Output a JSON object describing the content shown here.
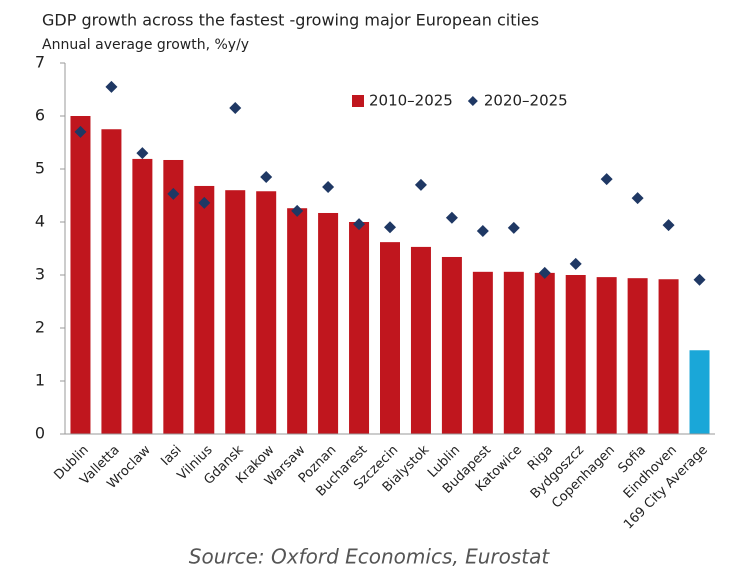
{
  "chart_data": {
    "type": "bar_dot",
    "title": "GDP growth across the fastest -growing major European cities",
    "subtitle": "Annual average growth, %y/y",
    "source": "Source: Oxford Economics, Eurostat",
    "categories": [
      "Dublin",
      "Valletta",
      "Wroclaw",
      "Iasi",
      "Vilnius",
      "Gdansk",
      "Krakow",
      "Warsaw",
      "Poznan",
      "Bucharest",
      "Szczecin",
      "Bialystok",
      "Lublin",
      "Budapest",
      "Katowice",
      "Riga",
      "Bydgoszcz",
      "Copenhagen",
      "Sofia",
      "Eindhoven",
      "169 City Average"
    ],
    "series": [
      {
        "name": "2010–2025",
        "kind": "bar",
        "color": "#c0161e",
        "colors": [
          "#c0161e",
          "#c0161e",
          "#c0161e",
          "#c0161e",
          "#c0161e",
          "#c0161e",
          "#c0161e",
          "#c0161e",
          "#c0161e",
          "#c0161e",
          "#c0161e",
          "#c0161e",
          "#c0161e",
          "#c0161e",
          "#c0161e",
          "#c0161e",
          "#c0161e",
          "#c0161e",
          "#c0161e",
          "#c0161e",
          "#1aa7d8"
        ],
        "values": [
          6.0,
          5.75,
          5.19,
          5.17,
          4.68,
          4.6,
          4.58,
          4.26,
          4.17,
          4.0,
          3.62,
          3.53,
          3.34,
          3.06,
          3.06,
          3.04,
          3.0,
          2.96,
          2.94,
          2.92,
          1.58
        ]
      },
      {
        "name": "2020–2025",
        "kind": "diamond",
        "color": "#1f3864",
        "values": [
          5.7,
          6.55,
          5.3,
          4.53,
          4.36,
          6.15,
          4.85,
          4.21,
          4.66,
          3.96,
          3.9,
          4.7,
          4.08,
          3.83,
          3.89,
          3.04,
          3.21,
          4.81,
          4.45,
          3.94,
          2.91
        ]
      }
    ],
    "ylim": [
      0,
      7
    ],
    "yticks": [
      0,
      1,
      2,
      3,
      4,
      5,
      6,
      7
    ],
    "grid": false
  }
}
